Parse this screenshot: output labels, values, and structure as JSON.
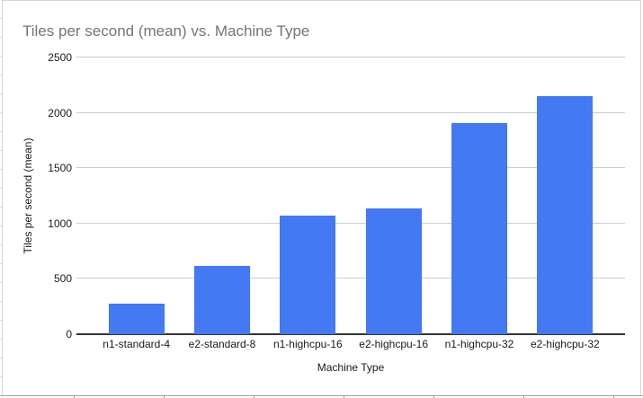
{
  "chart_data": {
    "type": "bar",
    "title": "Tiles per second (mean) vs. Machine Type",
    "xlabel": "Machine Type",
    "ylabel": "Tiles per second (mean)",
    "categories": [
      "n1-standard-4",
      "e2-standard-8",
      "n1-highcpu-16",
      "e2-highcpu-16",
      "n1-highcpu-32",
      "e2-highcpu-32"
    ],
    "values": [
      280,
      620,
      1075,
      1135,
      1910,
      2155
    ],
    "ylim": [
      0,
      2500
    ],
    "ytick_step": 500,
    "ytick_labels": [
      "0",
      "500",
      "1000",
      "1500",
      "2000",
      "2500"
    ],
    "grid": true,
    "legend_position": "none",
    "colors": {
      "bar": "#4379f2",
      "gridline": "#cccccc",
      "axis_line": "#333333",
      "title_text": "#757575",
      "tick_text": "#1a1a1a"
    }
  }
}
